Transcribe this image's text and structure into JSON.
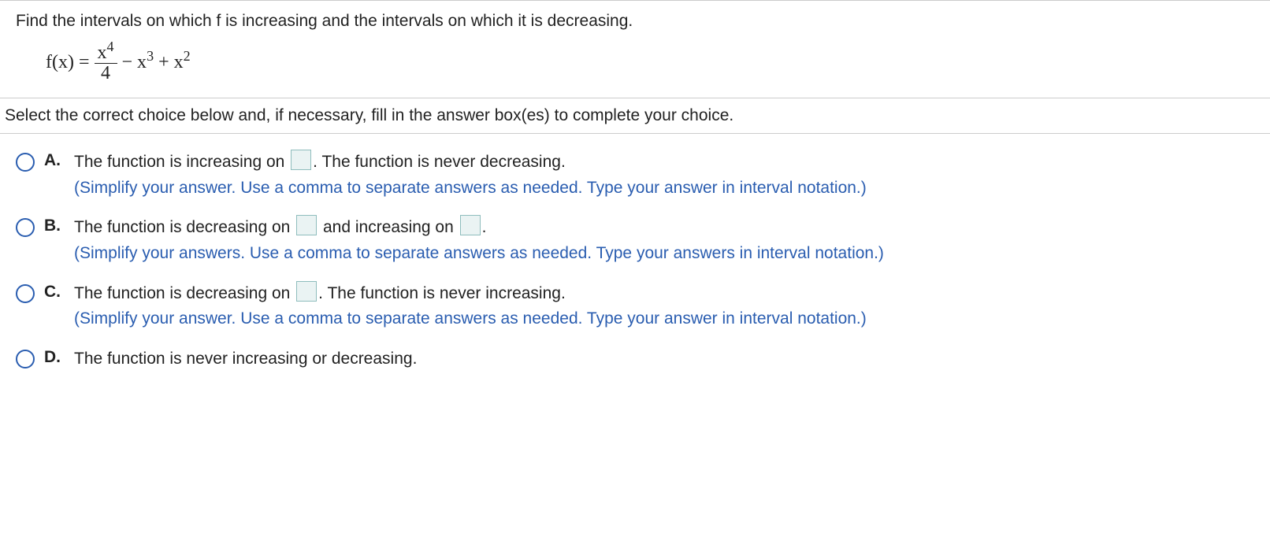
{
  "question": {
    "prompt": "Find the intervals on which f is increasing and the intervals on which it is decreasing.",
    "equation": {
      "lhs": "f(x) =",
      "frac_num_base": "x",
      "frac_num_exp": "4",
      "frac_den": "4",
      "term2_sign": " − x",
      "term2_exp": "3",
      "term3_sign": " + x",
      "term3_exp": "2"
    },
    "instruction": "Select the correct choice below and, if necessary, fill in the answer box(es) to complete your choice."
  },
  "choices": [
    {
      "letter": "A.",
      "segments": [
        {
          "text": "The function is increasing on "
        },
        {
          "box": true
        },
        {
          "text": ". The function is never decreasing."
        }
      ],
      "hint": "(Simplify your answer. Use a comma to separate answers as needed. Type your answer in interval notation.)"
    },
    {
      "letter": "B.",
      "segments": [
        {
          "text": "The function is decreasing on "
        },
        {
          "box": true
        },
        {
          "text": " and increasing on "
        },
        {
          "box": true
        },
        {
          "text": "."
        }
      ],
      "hint": "(Simplify your answers. Use a comma to separate answers as needed. Type your answers in interval notation.)"
    },
    {
      "letter": "C.",
      "segments": [
        {
          "text": "The function is decreasing on "
        },
        {
          "box": true
        },
        {
          "text": ". The function is never increasing."
        }
      ],
      "hint": "(Simplify your answer. Use a comma to separate answers as needed. Type your answer in interval notation.)"
    },
    {
      "letter": "D.",
      "segments": [
        {
          "text": "The function is never increasing or decreasing."
        }
      ],
      "hint": ""
    }
  ],
  "colors": {
    "rule": "#cccccc",
    "radio_border": "#2a5db0",
    "hint_text": "#2a5db0",
    "box_bg": "#eaf3f3",
    "box_border": "#8fbdbd",
    "text": "#222222",
    "background": "#ffffff"
  }
}
